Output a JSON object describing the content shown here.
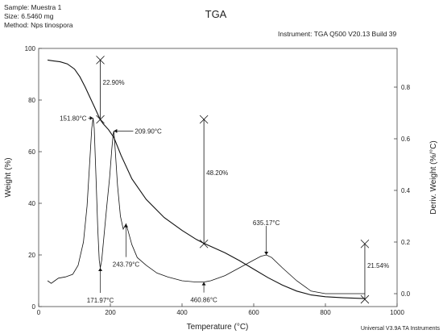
{
  "header": {
    "sample": "Sample: Muestra 1",
    "size": "Size:   6.5460 mg",
    "method": "Method: Nps tinospora",
    "instrument": "Instrument: TGA Q500 V20.13 Build 39"
  },
  "chart_data": {
    "type": "line",
    "title": "TGA",
    "xlabel": "Temperature (°C)",
    "ylabel": "Weight (%)",
    "y2label": "Deriv. Weight (%/°C)",
    "xlim": [
      0,
      1000
    ],
    "ylim": [
      0,
      100
    ],
    "y2lim": [
      -0.05,
      0.95
    ],
    "x_ticks": [
      "0",
      "200",
      "400",
      "600",
      "800",
      "1000"
    ],
    "y_ticks": [
      "0",
      "20",
      "40",
      "60",
      "80",
      "100"
    ],
    "y2_ticks": [
      "0.0",
      "0.2",
      "0.4",
      "0.6",
      "0.8"
    ],
    "series": [
      {
        "axis": "left",
        "x": [
          25,
          40,
          60,
          80,
          100,
          115,
          130,
          145,
          155,
          165,
          172,
          180,
          195,
          210,
          230,
          260,
          300,
          350,
          400,
          440,
          461,
          480,
          520,
          560,
          600,
          640,
          680,
          720,
          760,
          800,
          850,
          910
        ],
        "values": [
          95.5,
          95.2,
          94.8,
          94.0,
          92.0,
          89.0,
          85.0,
          80.5,
          77.5,
          74.5,
          72.4,
          70.8,
          68.5,
          65.5,
          58.5,
          49.5,
          41.5,
          34.5,
          29.5,
          26.0,
          24.5,
          23.3,
          20.8,
          17.8,
          14.5,
          11.2,
          8.3,
          6.0,
          4.5,
          3.8,
          3.4,
          3.1
        ]
      },
      {
        "axis": "right",
        "x": [
          25,
          35,
          45,
          55,
          75,
          95,
          110,
          125,
          135,
          142,
          148,
          151.8,
          155,
          160,
          165,
          169,
          171.97,
          176,
          182,
          190,
          198,
          204,
          208,
          209.9,
          214,
          220,
          228,
          236,
          243.79,
          250,
          260,
          275,
          300,
          330,
          360,
          400,
          440,
          460.86,
          480,
          520,
          560,
          600,
          620,
          635.17,
          650,
          680,
          720,
          760,
          800,
          850,
          910
        ],
        "values": [
          0.05,
          0.04,
          0.05,
          0.06,
          0.065,
          0.075,
          0.11,
          0.2,
          0.34,
          0.5,
          0.64,
          0.68,
          0.64,
          0.45,
          0.25,
          0.13,
          0.1,
          0.13,
          0.22,
          0.34,
          0.45,
          0.56,
          0.62,
          0.63,
          0.55,
          0.42,
          0.3,
          0.25,
          0.27,
          0.24,
          0.19,
          0.14,
          0.11,
          0.08,
          0.065,
          0.05,
          0.045,
          0.045,
          0.05,
          0.07,
          0.1,
          0.13,
          0.145,
          0.15,
          0.14,
          0.1,
          0.05,
          0.01,
          0.0,
          0.0,
          0.0
        ]
      }
    ],
    "annotations": [
      {
        "text": "22.90%",
        "axis": "left",
        "x": 172,
        "y_from": 95.5,
        "y_to": 72.5,
        "label_at": 86
      },
      {
        "text": "48.20%",
        "axis": "left",
        "x": 461,
        "y_from": 72.5,
        "y_to": 24.3,
        "label_at": 51
      },
      {
        "text": "21.54%",
        "axis": "left",
        "x": 910,
        "y_from": 24.3,
        "y_to": 2.8,
        "label_at": 15
      },
      {
        "text": "151.80°C",
        "axis": "right",
        "x": 151.8,
        "y": 0.68,
        "label_dx": -8,
        "label_dy": 0,
        "anchor": "end"
      },
      {
        "text": "209.90°C",
        "axis": "right",
        "x": 209.9,
        "y": 0.63,
        "label_dx": 26,
        "label_dy": 0,
        "anchor": "start"
      },
      {
        "text": "243.79°C",
        "axis": "right",
        "x": 243.79,
        "y": 0.27,
        "label_dx": 0,
        "label_dy": 50,
        "anchor": "middle"
      },
      {
        "text": "171.97°C",
        "axis": "right",
        "x": 171.97,
        "y": 0.1,
        "label_dx": 0,
        "label_dy": 40,
        "anchor": "middle"
      },
      {
        "text": "460.86°C",
        "axis": "right",
        "x": 460.86,
        "y": 0.045,
        "label_dx": 0,
        "label_dy": 22,
        "anchor": "middle"
      },
      {
        "text": "635.17°C",
        "axis": "right",
        "x": 635.17,
        "y": 0.15,
        "label_dx": 0,
        "label_dy": -40,
        "anchor": "middle"
      }
    ],
    "footer": "Universal V3.9A TA Instruments",
    "grid": false,
    "legend": "none"
  }
}
